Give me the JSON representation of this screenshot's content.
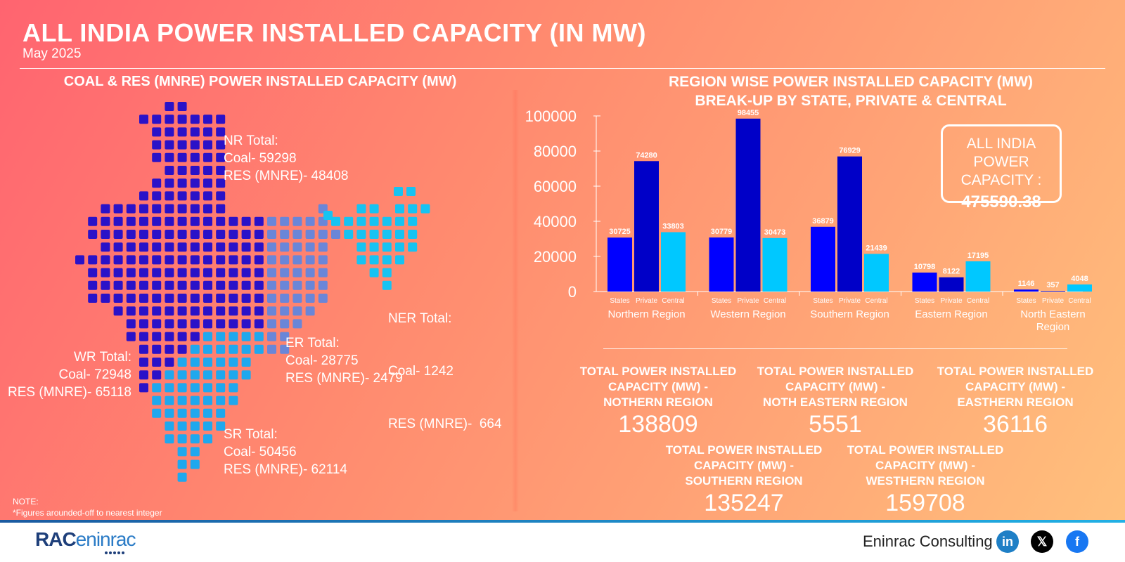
{
  "header": {
    "title": "ALL INDIA POWER INSTALLED CAPACITY (IN MW)",
    "subtitle": "May 2025"
  },
  "map_section": {
    "title": "COAL & RES (MNRE) POWER INSTALLED CAPACITY (MW)",
    "regions": {
      "nr": {
        "heading": "NR Total:",
        "coal": "Coal- 59298",
        "res": "RES (MNRE)- 48408"
      },
      "ner": {
        "heading": "NER Total:",
        "coal": "Coal- 1242",
        "res": "RES (MNRE)-  664"
      },
      "wr": {
        "heading": "WR Total:",
        "coal": "Coal- 72948",
        "res": "RES (MNRE)- 65118"
      },
      "er": {
        "heading": "ER Total:",
        "coal": "Coal- 28775",
        "res": "RES (MNRE)- 2479"
      },
      "sr": {
        "heading": "SR Total:",
        "coal": "Coal- 50456",
        "res": "RES (MNRE)- 62114"
      }
    },
    "colors": {
      "nr": "#2a12c8",
      "wr": "#2a12c8",
      "nr_top": "#1a0fb4",
      "er": "#6a86d8",
      "ner": "#16c3f2",
      "sr": "#1fa8ee"
    },
    "note_heading": "NOTE:",
    "note_text": "*Figures arounded-off to nearest integer"
  },
  "chart_section": {
    "title_line1": "REGION WISE POWER INSTALLED CAPACITY (MW)",
    "title_line2": "BREAK-UP BY STATE, PRIVATE & CENTRAL",
    "all_india_label": "ALL INDIA POWER CAPACITY :",
    "all_india_value": "475590.38"
  },
  "chart_data": {
    "type": "bar",
    "categories": [
      "Northern Region",
      "Western Region",
      "Southern Region",
      "Eastern Region",
      "North Eastern Region"
    ],
    "series": [
      {
        "name": "States",
        "color": "#0000ff",
        "values": [
          30725,
          30779,
          36879,
          10798,
          1146
        ]
      },
      {
        "name": "Private",
        "color": "#0000c8",
        "values": [
          74280,
          98455,
          76929,
          8122,
          357
        ]
      },
      {
        "name": "Central",
        "color": "#00c8ff",
        "values": [
          33803,
          30473,
          21439,
          17195,
          4048
        ]
      }
    ],
    "ylim": [
      0,
      100000
    ],
    "yticks": [
      "0",
      "20000",
      "40000",
      "60000",
      "80000",
      "100000"
    ],
    "grid": false,
    "legend": "none"
  },
  "totals": [
    {
      "label": "TOTAL POWER INSTALLED CAPACITY (MW) - NOTHERN REGION",
      "value": "138809"
    },
    {
      "label": "TOTAL POWER INSTALLED CAPACITY (MW) - NOTH EASTERN REGION",
      "value": "5551"
    },
    {
      "label": "TOTAL POWER INSTALLED CAPACITY (MW) - EASTHERN REGION",
      "value": "36116"
    },
    {
      "label": "TOTAL POWER INSTALLED CAPACITY (MW) - SOUTHERN REGION",
      "value": "135247"
    },
    {
      "label": "TOTAL POWER INSTALLED CAPACITY (MW) - WESTHERN REGION",
      "value": "159708"
    }
  ],
  "footer": {
    "logo_mark": "RAC",
    "logo_name": "eninrac",
    "brand": "Eninrac Consulting",
    "social": [
      {
        "name": "linkedin-icon",
        "glyph": "in",
        "color": "#1e7fc6"
      },
      {
        "name": "x-icon",
        "glyph": "𝕏",
        "color": "#000000"
      },
      {
        "name": "facebook-icon",
        "glyph": "f",
        "color": "#1877f2"
      }
    ]
  }
}
